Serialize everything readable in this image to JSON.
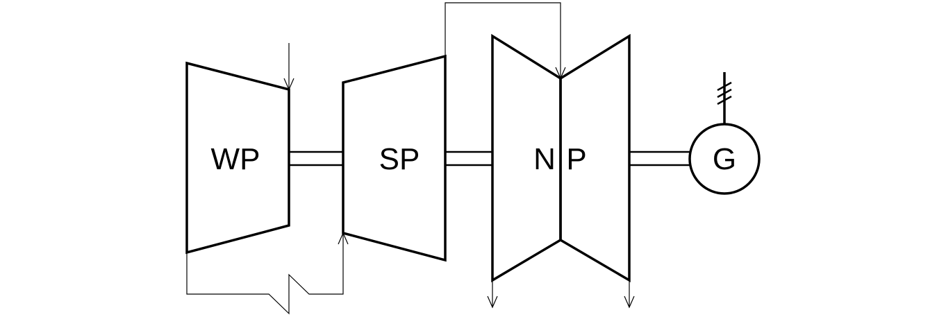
{
  "diagram": {
    "stages": {
      "wp": {
        "label": "WP"
      },
      "sp": {
        "label": "SP"
      },
      "np": {
        "label_left": "N",
        "label_right": "P"
      }
    },
    "generator": {
      "label": "G"
    }
  }
}
